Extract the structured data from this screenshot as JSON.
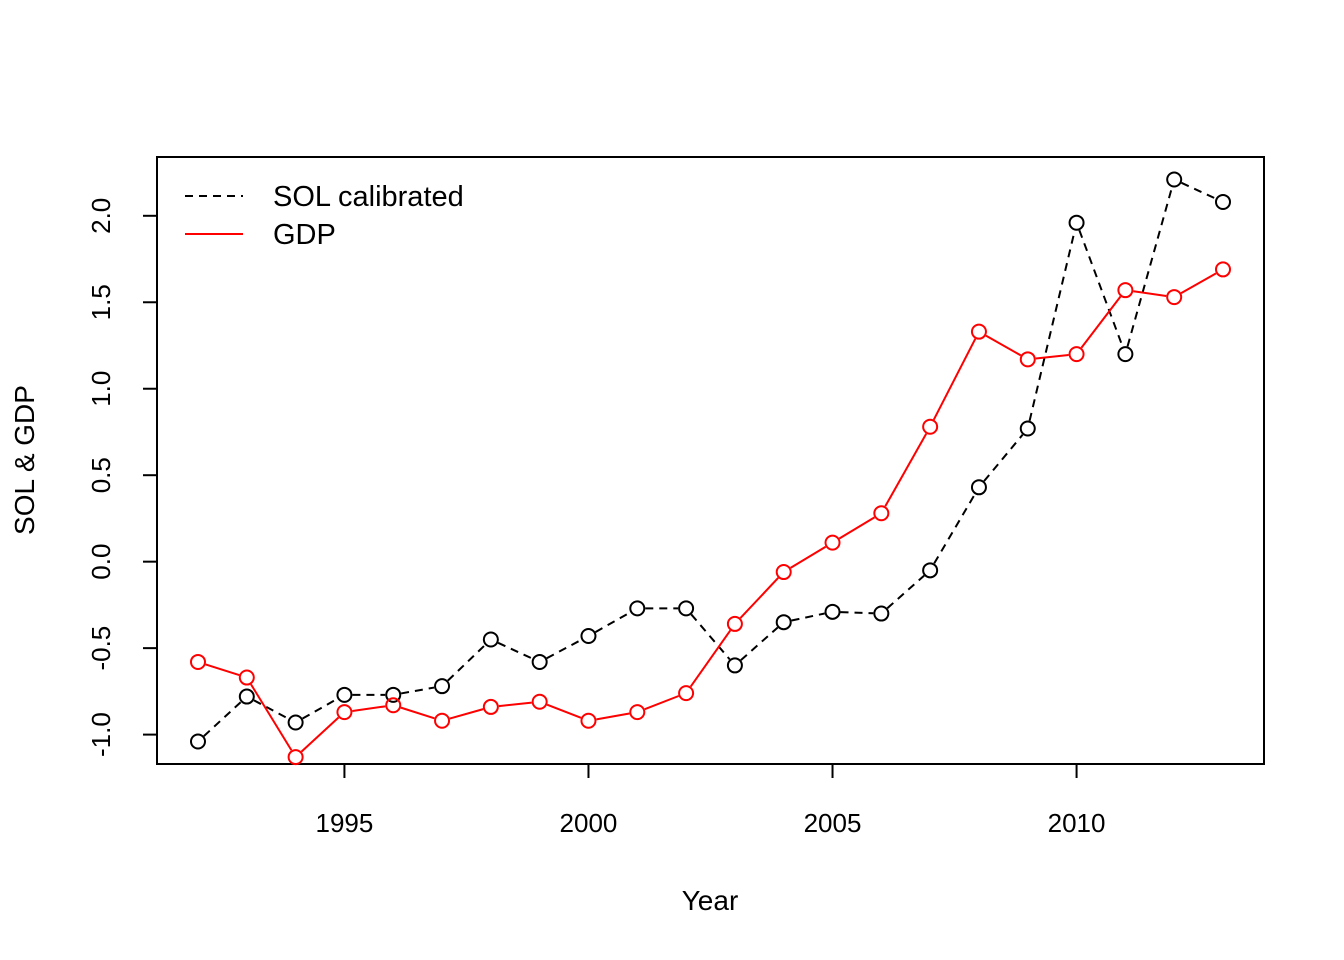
{
  "chart_data": {
    "type": "line",
    "title": "",
    "xlabel": "Year",
    "ylabel": "SOL & GDP",
    "xlim": [
      1991.16,
      2013.84
    ],
    "ylim": [
      -1.17,
      2.34
    ],
    "x_ticks": [
      1995,
      2000,
      2005,
      2010
    ],
    "y_ticks": [
      -1.0,
      -0.5,
      0.0,
      0.5,
      1.0,
      1.5,
      2.0
    ],
    "x_tick_labels": [
      "1995",
      "2000",
      "2005",
      "2010"
    ],
    "y_tick_labels": [
      "-1.0",
      "-0.5",
      "0.0",
      "0.5",
      "1.0",
      "1.5",
      "2.0"
    ],
    "grid": false,
    "legend_position": "top-left",
    "x": [
      1992,
      1993,
      1994,
      1995,
      1996,
      1997,
      1998,
      1999,
      2000,
      2001,
      2002,
      2003,
      2004,
      2005,
      2006,
      2007,
      2008,
      2009,
      2010,
      2011,
      2012,
      2013
    ],
    "series": [
      {
        "name": "SOL calibrated",
        "color": "#000000",
        "line_style": "dashed",
        "marker": "open-circle",
        "values": [
          -1.04,
          -0.78,
          -0.93,
          -0.77,
          -0.77,
          -0.72,
          -0.45,
          -0.58,
          -0.43,
          -0.27,
          -0.27,
          -0.6,
          -0.35,
          -0.29,
          -0.3,
          -0.05,
          0.43,
          0.77,
          1.96,
          1.2,
          2.21,
          2.08
        ]
      },
      {
        "name": "GDP",
        "color": "#ff0000",
        "line_style": "solid",
        "marker": "open-circle",
        "values": [
          -0.58,
          -0.67,
          -1.13,
          -0.87,
          -0.83,
          -0.92,
          -0.84,
          -0.81,
          -0.92,
          -0.87,
          -0.76,
          -0.36,
          -0.06,
          0.11,
          0.28,
          0.78,
          1.33,
          1.17,
          1.2,
          1.57,
          1.53,
          1.69
        ]
      }
    ]
  }
}
